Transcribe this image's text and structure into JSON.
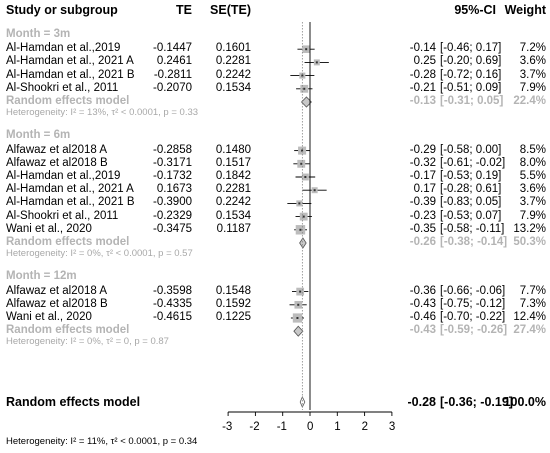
{
  "chart_data": {
    "type": "forest",
    "columns": {
      "study": "Study or subgroup",
      "te": "TE",
      "se": "SE(TE)",
      "ci": "95%-CI",
      "weight": "Weight"
    },
    "xlim": [
      -3,
      3
    ],
    "xticks": [
      "-3",
      "-2",
      "-1",
      "0",
      "1",
      "2",
      "3"
    ],
    "null_line": 0,
    "summary_line": -0.28,
    "groups": [
      {
        "label": "Month = 3m",
        "studies": [
          {
            "name": "Al-Hamdan et al.,2019",
            "te": "-0.1447",
            "se": "0.1601",
            "est": -0.14,
            "lo": -0.46,
            "hi": 0.17,
            "ci": "-0.14  [-0.46; 0.17]",
            "weight": "7.2%",
            "w": 7.2
          },
          {
            "name": "Al-Hamdan et al., 2021 A",
            "te": "0.2461",
            "se": "0.2281",
            "est": 0.25,
            "lo": -0.2,
            "hi": 0.69,
            "ci": "0.25  [-0.20; 0.69]",
            "weight": "3.6%",
            "w": 3.6
          },
          {
            "name": "Al-Hamdan et al., 2021 B",
            "te": "-0.2811",
            "se": "0.2242",
            "est": -0.28,
            "lo": -0.72,
            "hi": 0.16,
            "ci": "-0.28  [-0.72; 0.16]",
            "weight": "3.7%",
            "w": 3.7
          },
          {
            "name": "Al-Shookri et al., 2011",
            "te": "-0.2070",
            "se": "0.1534",
            "est": -0.21,
            "lo": -0.51,
            "hi": 0.09,
            "ci": "-0.21  [-0.51; 0.09]",
            "weight": "7.9%",
            "w": 7.9
          }
        ],
        "model": {
          "label": "Random effects model",
          "est": -0.13,
          "lo": -0.31,
          "hi": 0.05,
          "ci": "-0.13  [-0.31; 0.05]",
          "weight": "22.4%"
        },
        "heterogeneity": "Heterogeneity: I² = 13%, τ² < 0.0001, p = 0.33"
      },
      {
        "label": "Month = 6m",
        "studies": [
          {
            "name": "Alfawaz et al2018 A",
            "te": "-0.2858",
            "se": "0.1480",
            "est": -0.29,
            "lo": -0.58,
            "hi": 0.0,
            "ci": "-0.29  [-0.58; 0.00]",
            "weight": "8.5%",
            "w": 8.5
          },
          {
            "name": "Alfawaz et al2018 B",
            "te": "-0.3171",
            "se": "0.1517",
            "est": -0.32,
            "lo": -0.61,
            "hi": -0.02,
            "ci": "-0.32  [-0.61; -0.02]",
            "weight": "8.0%",
            "w": 8.0
          },
          {
            "name": "Al-Hamdan et al.,2019",
            "te": "-0.1732",
            "se": "0.1842",
            "est": -0.17,
            "lo": -0.53,
            "hi": 0.19,
            "ci": "-0.17  [-0.53; 0.19]",
            "weight": "5.5%",
            "w": 5.5
          },
          {
            "name": "Al-Hamdan et al., 2021 A",
            "te": "0.1673",
            "se": "0.2281",
            "est": 0.17,
            "lo": -0.28,
            "hi": 0.61,
            "ci": "0.17  [-0.28; 0.61]",
            "weight": "3.6%",
            "w": 3.6
          },
          {
            "name": "Al-Hamdan et al., 2021 B",
            "te": "-0.3900",
            "se": "0.2242",
            "est": -0.39,
            "lo": -0.83,
            "hi": 0.05,
            "ci": "-0.39  [-0.83; 0.05]",
            "weight": "3.7%",
            "w": 3.7
          },
          {
            "name": "Al-Shookri et al., 2011",
            "te": "-0.2329",
            "se": "0.1534",
            "est": -0.23,
            "lo": -0.53,
            "hi": 0.07,
            "ci": "-0.23  [-0.53; 0.07]",
            "weight": "7.9%",
            "w": 7.9
          },
          {
            "name": "Wani et al., 2020",
            "te": "-0.3475",
            "se": "0.1187",
            "est": -0.35,
            "lo": -0.58,
            "hi": -0.11,
            "ci": "-0.35  [-0.58; -0.11]",
            "weight": "13.2%",
            "w": 13.2
          }
        ],
        "model": {
          "label": "Random effects model",
          "est": -0.26,
          "lo": -0.38,
          "hi": -0.14,
          "ci": "-0.26  [-0.38; -0.14]",
          "weight": "50.3%"
        },
        "heterogeneity": "Heterogeneity: I² = 0%, τ² < 0.0001, p = 0.57"
      },
      {
        "label": "Month = 12m",
        "studies": [
          {
            "name": "Alfawaz et al2018 A",
            "te": "-0.3598",
            "se": "0.1548",
            "est": -0.36,
            "lo": -0.66,
            "hi": -0.06,
            "ci": "-0.36  [-0.66; -0.06]",
            "weight": "7.7%",
            "w": 7.7
          },
          {
            "name": "Alfawaz et al2018 B",
            "te": "-0.4335",
            "se": "0.1592",
            "est": -0.43,
            "lo": -0.75,
            "hi": -0.12,
            "ci": "-0.43  [-0.75; -0.12]",
            "weight": "7.3%",
            "w": 7.3
          },
          {
            "name": "Wani et al., 2020",
            "te": "-0.4615",
            "se": "0.1225",
            "est": -0.46,
            "lo": -0.7,
            "hi": -0.22,
            "ci": "-0.46  [-0.70; -0.22]",
            "weight": "12.4%",
            "w": 12.4
          }
        ],
        "model": {
          "label": "Random effects model",
          "est": -0.43,
          "lo": -0.59,
          "hi": -0.26,
          "ci": "-0.43  [-0.59; -0.26]",
          "weight": "27.4%"
        },
        "heterogeneity": "Heterogeneity: I² = 0%, τ² = 0, p = 0.87"
      }
    ],
    "overall": {
      "label": "Random effects model",
      "est": -0.28,
      "lo": -0.36,
      "hi": -0.19,
      "ci": "-0.28  [-0.36; -0.19]",
      "weight": "100.0%"
    },
    "overall_heterogeneity": "Heterogeneity: I² = 11%, τ² < 0.0001, p = 0.34"
  }
}
